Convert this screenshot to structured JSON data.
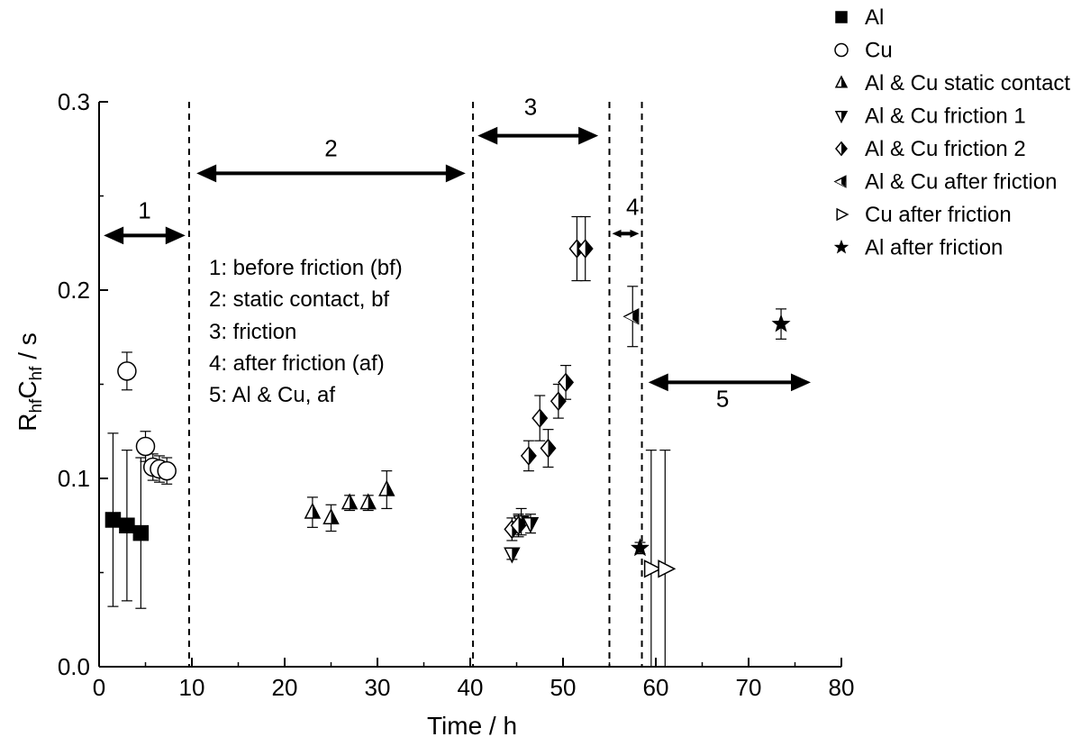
{
  "chart_data": {
    "type": "scatter",
    "xlabel": "Time / h",
    "ylabel_main": "R",
    "ylabel_sub1": "hf",
    "ylabel_mid": "C",
    "ylabel_sub2": "hf",
    "ylabel_tail": " / s",
    "xlim": [
      0,
      80
    ],
    "ylim": [
      0,
      0.3
    ],
    "xticks": [
      0,
      10,
      20,
      30,
      40,
      50,
      60,
      70,
      80
    ],
    "xtick_labels": [
      "0",
      "10",
      "20",
      "30",
      "40",
      "50",
      "60",
      "70",
      "80"
    ],
    "yticks": [
      0,
      0.1,
      0.2,
      0.3
    ],
    "ytick_labels": [
      "0.0",
      "0.1",
      "0.2",
      "0.3"
    ],
    "grid": false,
    "legend_position": "top-right, outside plot",
    "vlines": [
      9.7,
      40.3,
      55,
      58.5
    ],
    "regions": [
      {
        "label": "1",
        "x0": 0.5,
        "x1": 9.3,
        "y": 0.229,
        "label_x": 4.9,
        "label_y": 0.238
      },
      {
        "label": "2",
        "x0": 10.5,
        "x1": 39.5,
        "y": 0.262,
        "label_x": 25,
        "label_y": 0.271
      },
      {
        "label": "3",
        "x0": 40.8,
        "x1": 53.8,
        "y": 0.282,
        "label_x": 46.5,
        "label_y": 0.293
      },
      {
        "label": "4",
        "x0": 55.3,
        "x1": 58.2,
        "y": 0.23,
        "label_x": 57.5,
        "label_y": 0.24
      },
      {
        "label": "5",
        "x0": 59.2,
        "x1": 76.7,
        "y": 0.151,
        "label_x": 67.2,
        "label_y": 0.138
      }
    ],
    "notes": [
      "1: before friction (bf)",
      "2: static contact, bf",
      "3: friction",
      "4: after friction (af)",
      "5: Al & Cu, af"
    ],
    "series": [
      {
        "name": "Al",
        "marker": "square-filled",
        "points": [
          [
            1.5,
            0.078,
            0.046
          ],
          [
            3.0,
            0.075,
            0.04
          ],
          [
            4.5,
            0.071,
            0.04
          ]
        ]
      },
      {
        "name": "Cu",
        "marker": "circle-open",
        "points": [
          [
            3.0,
            0.157,
            0.01
          ],
          [
            5.0,
            0.117,
            0.008
          ],
          [
            5.8,
            0.106,
            0.007
          ],
          [
            6.5,
            0.105,
            0.007
          ],
          [
            7.3,
            0.104,
            0.007
          ]
        ]
      },
      {
        "name": "Al & Cu static contact",
        "marker": "triangle-up-half",
        "points": [
          [
            23.0,
            0.082,
            0.008
          ],
          [
            25.0,
            0.079,
            0.007
          ],
          [
            27.0,
            0.087,
            0.004
          ],
          [
            29.0,
            0.087,
            0.004
          ],
          [
            31.0,
            0.094,
            0.01
          ]
        ]
      },
      {
        "name": "Al & Cu friction 1",
        "marker": "triangle-down-half",
        "points": [
          [
            44.5,
            0.06,
            0.003
          ],
          [
            45.5,
            0.077,
            0.007
          ],
          [
            46.5,
            0.076,
            0.005
          ]
        ]
      },
      {
        "name": "Al & Cu friction 2",
        "marker": "diamond-half",
        "points": [
          [
            44.5,
            0.073,
            0.006
          ],
          [
            45.2,
            0.075,
            0.006
          ],
          [
            46.3,
            0.112,
            0.008
          ],
          [
            47.5,
            0.132,
            0.012
          ],
          [
            48.4,
            0.116,
            0.01
          ],
          [
            49.5,
            0.141,
            0.009
          ],
          [
            50.3,
            0.151,
            0.009
          ],
          [
            51.5,
            0.222,
            0.017
          ],
          [
            52.4,
            0.222,
            0.017
          ]
        ]
      },
      {
        "name": "Al & Cu after friction",
        "marker": "triangle-left-half",
        "points": [
          [
            57.5,
            0.186,
            0.016
          ]
        ]
      },
      {
        "name": "Cu after friction",
        "marker": "triangle-right-open",
        "points": [
          [
            59.5,
            0.052,
            0.063
          ],
          [
            61.0,
            0.052,
            0.063
          ]
        ]
      },
      {
        "name": "Al after friction",
        "marker": "star-filled",
        "points": [
          [
            58.3,
            0.063,
            0.003
          ],
          [
            73.5,
            0.182,
            0.008
          ]
        ]
      }
    ]
  }
}
